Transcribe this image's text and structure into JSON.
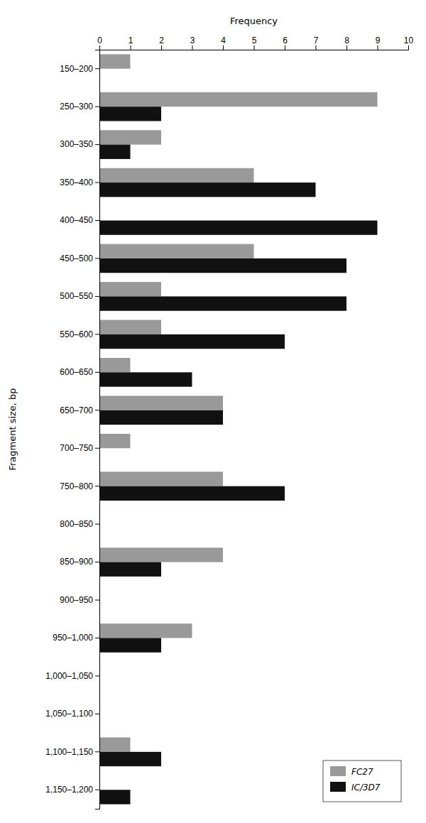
{
  "chart_data": {
    "type": "bar",
    "orientation": "horizontal",
    "x_label": "Frequency",
    "y_label": "Fragment size, bp",
    "categories": [
      "150–200",
      "250–300",
      "300–350",
      "350–400",
      "400–450",
      "450–500",
      "500–550",
      "550–600",
      "600–650",
      "650–700",
      "700–750",
      "750–800",
      "800–850",
      "850–900",
      "900–950",
      "950–1,000",
      "1,000–1,050",
      "1,050–1,100",
      "1,100–1,150",
      "1,150–1,200"
    ],
    "series": [
      {
        "name": "FC27",
        "color": "#999999",
        "values": [
          1,
          9,
          2,
          5,
          0,
          5,
          2,
          2,
          1,
          4,
          1,
          4,
          0,
          4,
          0,
          3,
          0,
          0,
          1,
          0
        ]
      },
      {
        "name": "IC/3D7",
        "color": "#111111",
        "values": [
          0,
          2,
          1,
          7,
          9,
          8,
          8,
          6,
          3,
          4,
          0,
          6,
          0,
          2,
          0,
          2,
          0,
          0,
          2,
          1
        ]
      }
    ],
    "xlim": [
      0,
      10
    ],
    "xticks": [
      0,
      1,
      2,
      3,
      4,
      5,
      6,
      7,
      8,
      9,
      10
    ],
    "grid": false,
    "legend": "lower right"
  }
}
